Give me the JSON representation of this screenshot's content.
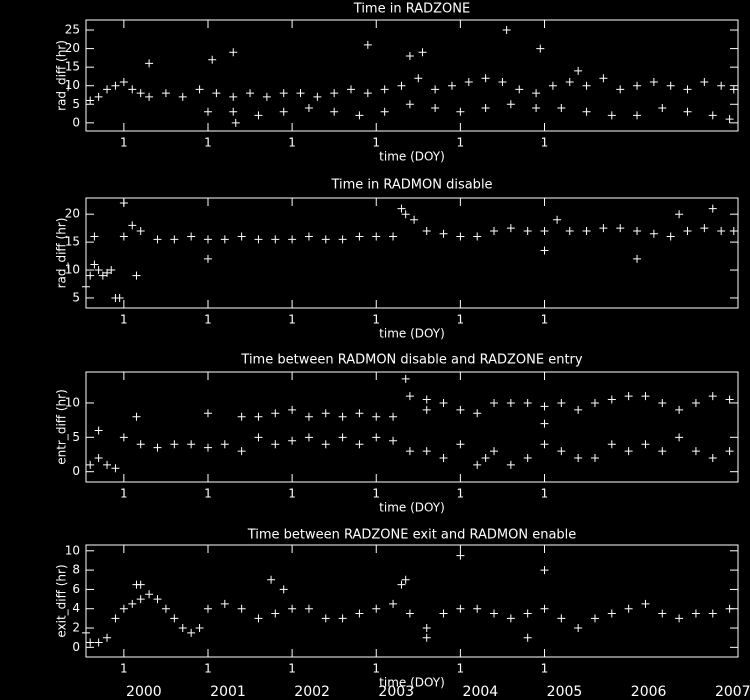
{
  "chart_data": [
    {
      "type": "scatter",
      "title": "Time in RADZONE",
      "xlabel": "time (DOY)",
      "ylabel": "rad_diff (hr)",
      "color": "#ffffff",
      "grid": false,
      "xlim": [
        1999.55,
        2007.3
      ],
      "xticks": [
        {
          "value": 2000,
          "label": "1"
        },
        {
          "value": 2001,
          "label": "1"
        },
        {
          "value": 2002,
          "label": "1"
        },
        {
          "value": 2003,
          "label": "1"
        },
        {
          "value": 2004,
          "label": "1"
        },
        {
          "value": 2005,
          "label": "1"
        }
      ],
      "ylim": [
        -2.2,
        27.7
      ],
      "yticks": [
        0,
        5,
        10,
        15,
        20,
        25
      ],
      "x": [
        1999.6,
        1999.7,
        1999.8,
        1999.9,
        2000.0,
        2000.1,
        2000.2,
        2000.3,
        2000.5,
        2000.7,
        2000.9,
        2001.1,
        2001.3,
        2001.5,
        2001.7,
        2001.9,
        2002.1,
        2002.3,
        2002.5,
        2002.7,
        2002.9,
        2003.1,
        2003.3,
        2003.5,
        2003.7,
        2003.9,
        2004.1,
        2004.3,
        2004.5,
        2004.7,
        2004.9,
        2005.1,
        2005.3,
        2005.5,
        2005.7,
        2005.9,
        2006.1,
        2006.3,
        2006.5,
        2006.7,
        2006.9,
        2007.1,
        2007.25,
        2001.0,
        2001.3,
        2001.6,
        2001.9,
        2002.2,
        2002.5,
        2002.8,
        2003.1,
        2003.4,
        2003.7,
        2004.0,
        2004.3,
        2004.6,
        2004.9,
        2005.2,
        2005.5,
        2005.8,
        2006.1,
        2006.4,
        2006.7,
        2007.0,
        2007.2,
        2000.3,
        2001.05,
        2001.3,
        2001.33,
        2002.9,
        2003.4,
        2003.55,
        2004.55,
        2004.95,
        2005.4
      ],
      "values": [
        6,
        7,
        9,
        10,
        11,
        9,
        8,
        7,
        8,
        7,
        9,
        8,
        7,
        8,
        7,
        8,
        8,
        7,
        8,
        9,
        8,
        9,
        10,
        12,
        9,
        10,
        11,
        12,
        11,
        9,
        8,
        10,
        11,
        10,
        12,
        9,
        10,
        11,
        10,
        9,
        11,
        10,
        9,
        3,
        3,
        2,
        3,
        4,
        3,
        2,
        3,
        5,
        4,
        3,
        4,
        5,
        4,
        4,
        3,
        2,
        2,
        4,
        3,
        2,
        1,
        16,
        17,
        19,
        0,
        21,
        18,
        19,
        25,
        20,
        14
      ]
    },
    {
      "type": "scatter",
      "title": "Time in RADMON disable",
      "xlabel": "time (DOY)",
      "ylabel": "rad_diff (hr)",
      "color": "#ffffff",
      "grid": false,
      "xlim": [
        1999.55,
        2007.3
      ],
      "xticks": [
        {
          "value": 2000,
          "label": "1"
        },
        {
          "value": 2001,
          "label": "1"
        },
        {
          "value": 2002,
          "label": "1"
        },
        {
          "value": 2003,
          "label": "1"
        },
        {
          "value": 2004,
          "label": "1"
        },
        {
          "value": 2005,
          "label": "1"
        }
      ],
      "ylim": [
        3.2,
        22.9
      ],
      "yticks": [
        5,
        10,
        15,
        20
      ],
      "x": [
        1999.55,
        1999.6,
        1999.65,
        1999.7,
        1999.75,
        1999.8,
        1999.85,
        1999.9,
        1999.95,
        2000.0,
        2000.1,
        2000.2,
        2000.4,
        2000.6,
        2000.8,
        2001.0,
        2001.2,
        2001.4,
        2001.6,
        2001.8,
        2002.0,
        2002.2,
        2002.4,
        2002.6,
        2002.8,
        2003.0,
        2003.2,
        2003.3,
        2003.35,
        2003.45,
        2003.6,
        2003.8,
        2004.0,
        2004.2,
        2004.4,
        2004.6,
        2004.8,
        2005.0,
        2005.15,
        2005.3,
        2005.5,
        2005.7,
        2005.9,
        2006.1,
        2006.3,
        2006.5,
        2006.7,
        2006.9,
        2007.1,
        2007.25,
        1999.65,
        2000.0,
        2000.15,
        2001.0,
        2005.0,
        2006.1,
        2006.6,
        2007.0
      ],
      "values": [
        7,
        9,
        11,
        10,
        9,
        9.5,
        10,
        5,
        5,
        16,
        18,
        17,
        15.5,
        15.5,
        16,
        15.5,
        15.5,
        16,
        15.5,
        15.5,
        15.5,
        16,
        15.5,
        15.5,
        16,
        16,
        16,
        21,
        20,
        19,
        17,
        16.5,
        16,
        16,
        17,
        17.5,
        17,
        17,
        19,
        17,
        17,
        17.5,
        17.5,
        17,
        16.5,
        16,
        17,
        17.5,
        17,
        17,
        16,
        22,
        9,
        12,
        13.5,
        12,
        20,
        21
      ]
    },
    {
      "type": "scatter",
      "title": "Time between RADMON disable and RADZONE entry",
      "xlabel": "time (DOY)",
      "ylabel": "entr_diff (hr)",
      "color": "#ffffff",
      "grid": false,
      "xlim": [
        1999.55,
        2007.3
      ],
      "xticks": [
        {
          "value": 2000,
          "label": "1"
        },
        {
          "value": 2001,
          "label": "1"
        },
        {
          "value": 2002,
          "label": "1"
        },
        {
          "value": 2003,
          "label": "1"
        },
        {
          "value": 2004,
          "label": "1"
        },
        {
          "value": 2005,
          "label": "1"
        }
      ],
      "ylim": [
        -1.5,
        14.5
      ],
      "yticks": [
        0,
        5,
        10
      ],
      "x": [
        2001.4,
        2001.6,
        2001.8,
        2002.0,
        2002.2,
        2002.4,
        2002.6,
        2002.8,
        2003.0,
        2003.2,
        2003.4,
        2003.6,
        2003.8,
        2004.0,
        2004.2,
        2004.4,
        2004.6,
        2004.8,
        2005.0,
        2005.2,
        2005.4,
        2005.6,
        2005.8,
        2006.0,
        2006.2,
        2006.4,
        2006.6,
        2006.8,
        2007.0,
        2007.2,
        1999.6,
        1999.7,
        1999.8,
        1999.9,
        2000.0,
        2000.2,
        2000.4,
        2000.6,
        2000.8,
        2001.0,
        2001.2,
        2001.4,
        2001.6,
        2001.8,
        2002.0,
        2002.2,
        2002.4,
        2002.6,
        2002.8,
        2003.0,
        2003.2,
        2003.4,
        2003.6,
        2003.8,
        2004.0,
        2004.2,
        2004.4,
        2004.6,
        2004.8,
        2005.0,
        2005.2,
        2005.4,
        2005.6,
        2005.8,
        2006.0,
        2006.2,
        2006.4,
        2006.6,
        2006.8,
        2007.0,
        2007.2,
        1999.7,
        2000.15,
        2001.0,
        2003.35,
        2003.6,
        2004.3,
        2005.0
      ],
      "values": [
        8,
        8,
        8.5,
        9,
        8,
        8.5,
        8,
        8.5,
        8,
        8,
        11,
        10.5,
        10,
        9,
        8.5,
        10,
        10,
        10,
        9.5,
        10,
        9,
        10,
        10.5,
        11,
        11,
        10,
        9,
        10,
        11,
        10.5,
        1,
        2,
        1,
        0.5,
        5,
        4,
        3.5,
        4,
        4,
        3.5,
        4,
        3,
        5,
        4,
        4.5,
        5,
        4,
        5,
        4,
        5,
        4.5,
        3,
        3,
        2,
        4,
        1,
        3,
        1,
        2,
        4,
        3,
        2,
        2,
        4,
        3,
        4,
        3,
        5,
        3,
        2,
        3,
        6,
        8,
        8.5,
        13.5,
        9,
        2,
        7
      ]
    },
    {
      "type": "scatter",
      "title": "Time between RADZONE exit and RADMON enable",
      "xlabel": "time (DOY)",
      "ylabel": "exit_diff (hr)",
      "color": "#ffffff",
      "grid": false,
      "xlim": [
        1999.55,
        2007.3
      ],
      "xticks": [
        {
          "value": 2000,
          "label": "1"
        },
        {
          "value": 2001,
          "label": "1"
        },
        {
          "value": 2002,
          "label": "1"
        },
        {
          "value": 2003,
          "label": "1"
        },
        {
          "value": 2004,
          "label": "1"
        },
        {
          "value": 2005,
          "label": "1"
        }
      ],
      "ylim": [
        -1,
        10.6
      ],
      "yticks": [
        0,
        2,
        4,
        6,
        8,
        10
      ],
      "year_labels": [
        2000,
        2001,
        2002,
        2003,
        2004,
        2005,
        2006,
        2007
      ],
      "x": [
        1999.55,
        1999.6,
        1999.7,
        1999.8,
        1999.9,
        2000.0,
        2000.1,
        2000.2,
        2000.3,
        2000.4,
        2000.5,
        2000.6,
        2000.7,
        2000.8,
        2000.9,
        2001.0,
        2001.2,
        2001.4,
        2001.6,
        2001.8,
        2002.0,
        2002.2,
        2002.4,
        2002.6,
        2002.8,
        2003.0,
        2003.2,
        2003.4,
        2003.6,
        2003.8,
        2004.0,
        2004.2,
        2004.4,
        2004.6,
        2004.8,
        2005.0,
        2005.2,
        2005.4,
        2005.6,
        2005.8,
        2006.0,
        2006.2,
        2006.4,
        2006.6,
        2006.8,
        2007.0,
        2007.2,
        2000.15,
        2000.2,
        2001.75,
        2001.9,
        2003.3,
        2003.35,
        2004.0,
        2005.0,
        2003.6,
        2004.8
      ],
      "values": [
        1.5,
        0.5,
        0.5,
        1,
        3,
        4,
        4.5,
        5,
        5.5,
        5,
        4,
        3,
        2,
        1.5,
        2,
        4,
        4.5,
        4,
        3,
        3.5,
        4,
        4,
        3,
        3,
        3.5,
        4,
        4.5,
        3.5,
        2,
        3.5,
        4,
        4,
        3.5,
        3,
        3.5,
        4,
        3,
        2,
        3,
        3.5,
        4,
        4.5,
        3.5,
        3,
        3.5,
        3.5,
        4,
        6.5,
        6.5,
        7,
        6,
        6.5,
        7,
        9.5,
        8,
        1,
        1
      ]
    }
  ]
}
